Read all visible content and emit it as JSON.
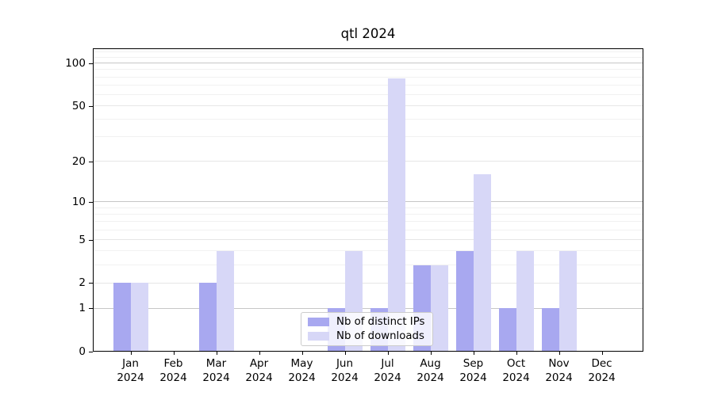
{
  "chart_data": {
    "type": "bar",
    "title": "qtl 2024",
    "categories": [
      "Jan",
      "Feb",
      "Mar",
      "Apr",
      "May",
      "Jun",
      "Jul",
      "Aug",
      "Sep",
      "Oct",
      "Nov",
      "Dec"
    ],
    "year": "2024",
    "series": [
      {
        "name": "Nb of distinct IPs",
        "color": "#a8a8f0",
        "values": [
          2,
          0,
          2,
          0,
          0,
          1,
          1,
          3,
          4,
          1,
          1,
          0
        ]
      },
      {
        "name": "Nb of downloads",
        "color": "#d7d7f7",
        "values": [
          2,
          0,
          4,
          0,
          0,
          4,
          78,
          3,
          16,
          4,
          4,
          0
        ]
      }
    ],
    "yscale": "log1p",
    "ylim": [
      0,
      127
    ],
    "y_major_ticks": [
      0,
      1,
      2,
      5,
      10,
      20,
      50,
      100
    ],
    "y_minor_ticks": [
      3,
      4,
      6,
      7,
      8,
      9,
      30,
      40,
      60,
      70,
      80,
      90,
      110,
      120
    ],
    "xlabel": "",
    "ylabel": "",
    "grid": true,
    "legend_position": "lower center"
  },
  "colors": {
    "grid_decade": "#c6c6c6",
    "grid_major": "#e6e6e6",
    "grid_minor": "#f1f1f1",
    "spine": "#000000",
    "legend_border": "#cccccc",
    "background": "#ffffff"
  }
}
